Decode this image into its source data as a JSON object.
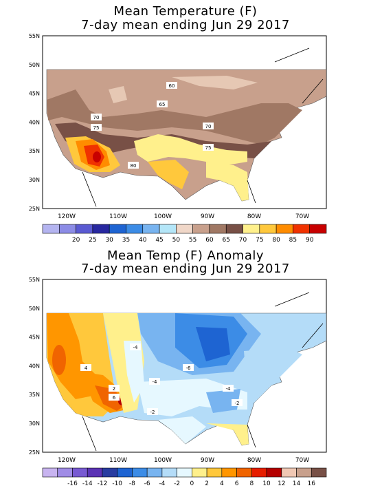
{
  "panels": [
    {
      "title_line1": "Mean Temperature (F)",
      "title_line2": "7-day mean ending Jun 29 2017",
      "lat_labels": [
        "55N",
        "50N",
        "45N",
        "40N",
        "35N",
        "30N",
        "25N"
      ],
      "lon_labels": [
        "120W",
        "110W",
        "100W",
        "90W",
        "80W",
        "70W"
      ],
      "contour_labels": [
        "60",
        "65",
        "70",
        "75",
        "70",
        "75",
        "80"
      ],
      "legend_colors": [
        "#b4b4f0",
        "#8c8ce6",
        "#5a5ad2",
        "#2828a0",
        "#1e64d2",
        "#3c8ce6",
        "#78b4f0",
        "#b4e6f8",
        "#f0d7c8",
        "#c8a08c",
        "#a07864",
        "#785046",
        "#fff08c",
        "#ffc83c",
        "#ff8c00",
        "#f03200",
        "#c80000"
      ],
      "legend_labels": [
        "20",
        "25",
        "30",
        "35",
        "40",
        "45",
        "50",
        "55",
        "60",
        "65",
        "70",
        "75",
        "80",
        "85",
        "90"
      ]
    },
    {
      "title_line1": "Mean Temp (F) Anomaly",
      "title_line2": "7-day mean ending Jun 29 2017",
      "lat_labels": [
        "55N",
        "50N",
        "45N",
        "40N",
        "35N",
        "30N",
        "25N"
      ],
      "lon_labels": [
        "120W",
        "110W",
        "100W",
        "90W",
        "80W",
        "70W"
      ],
      "contour_labels": [
        "-4",
        "-6",
        "-4",
        "-2",
        "-4",
        "-2",
        "4",
        "2",
        "6"
      ],
      "legend_colors": [
        "#c8b4f0",
        "#a08ce6",
        "#785ad2",
        "#5a32b4",
        "#283ca0",
        "#1e64d2",
        "#3c8ce6",
        "#78b4f0",
        "#b4dcf8",
        "#e6f8ff",
        "#fff08c",
        "#ffc83c",
        "#ff9600",
        "#f06400",
        "#e61e00",
        "#b40000",
        "#f0c8b4",
        "#c8a08c",
        "#785046"
      ],
      "legend_labels": [
        "-16",
        "-14",
        "-12",
        "-10",
        "-8",
        "-6",
        "-4",
        "-2",
        "0",
        "2",
        "4",
        "6",
        "8",
        "10",
        "12",
        "14",
        "16"
      ]
    }
  ]
}
